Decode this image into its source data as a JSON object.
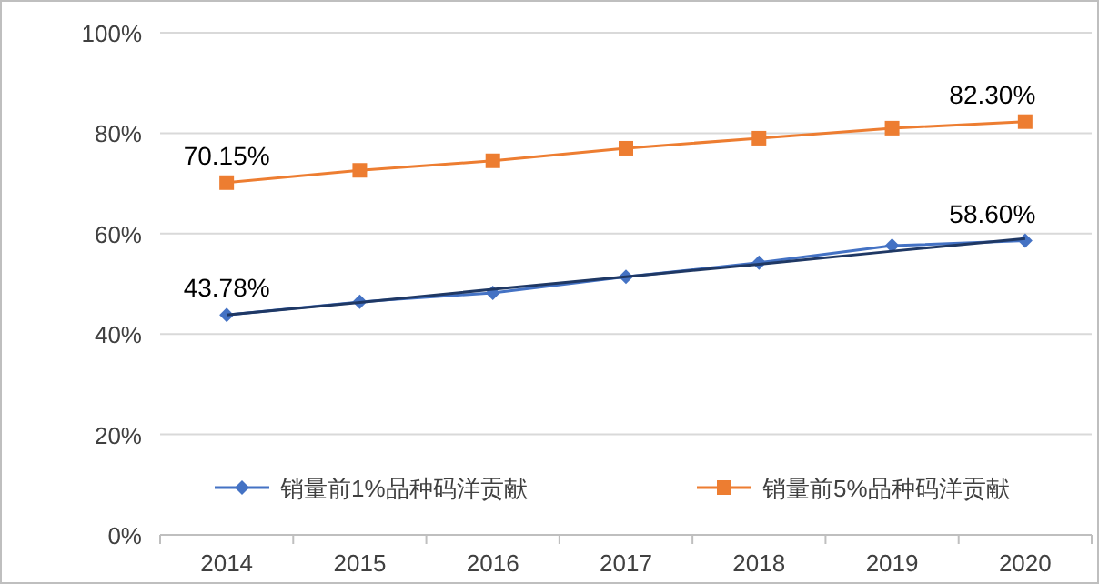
{
  "chart_data": {
    "type": "line",
    "categories": [
      "2014",
      "2015",
      "2016",
      "2017",
      "2018",
      "2019",
      "2020"
    ],
    "series": [
      {
        "name": "销量前1%品种码洋贡献",
        "color": "#4472c4",
        "marker": "diamond",
        "values": [
          43.78,
          46.4,
          48.2,
          51.4,
          54.2,
          57.6,
          58.6
        ],
        "value_labels": [
          "43.78%",
          null,
          null,
          null,
          null,
          null,
          "58.60%"
        ]
      },
      {
        "name": "销量前5%品种码洋贡献",
        "color": "#ed7d31",
        "marker": "square",
        "values": [
          70.15,
          72.6,
          74.5,
          77.0,
          79.0,
          81.0,
          82.3
        ],
        "value_labels": [
          "70.15%",
          null,
          null,
          null,
          null,
          null,
          "82.30%"
        ]
      },
      {
        "type": "line",
        "color": "#1f3864",
        "marker": "none",
        "values": [
          43.8,
          46.3,
          48.9,
          51.4,
          53.9,
          56.5,
          59.0
        ]
      }
    ],
    "ylim": [
      0,
      100
    ],
    "yticks": [
      {
        "value": 0,
        "label": "0%"
      },
      {
        "value": 20,
        "label": "20%"
      },
      {
        "value": 40,
        "label": "40%"
      },
      {
        "value": 60,
        "label": "60%"
      },
      {
        "value": 80,
        "label": "80%"
      },
      {
        "value": 100,
        "label": "100%"
      }
    ],
    "grid": "y",
    "legend": "bottom"
  }
}
